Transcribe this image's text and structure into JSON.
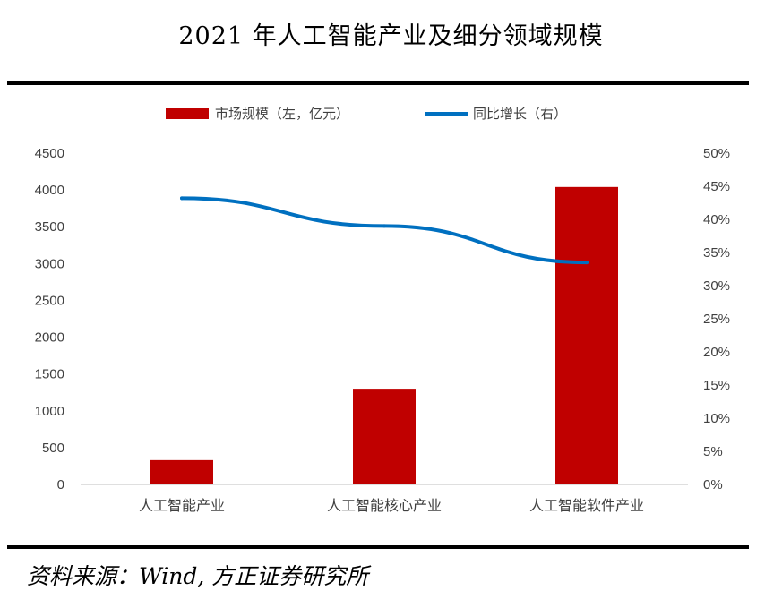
{
  "title": "2021 年人工智能产业及细分领域规模",
  "source": "资料来源：Wind, 方正证券研究所",
  "colors": {
    "bar": "#c00000",
    "line": "#0070c0",
    "axis": "#bfbfbf",
    "text": "#404040"
  },
  "chart_data": {
    "type": "bar+line",
    "categories": [
      "人工智能产业",
      "人工智能核心产业",
      "人工智能软件产业"
    ],
    "series": [
      {
        "name": "市场规模（左，亿元）",
        "type": "bar",
        "axis": "left",
        "values": [
          330,
          1300,
          4040
        ]
      },
      {
        "name": "同比增长（右）",
        "type": "line",
        "axis": "right",
        "values": [
          43.2,
          39.0,
          33.5
        ]
      }
    ],
    "left_axis": {
      "min": 0,
      "max": 4500,
      "step": 500,
      "ticks": [
        "0",
        "500",
        "1000",
        "1500",
        "2000",
        "2500",
        "3000",
        "3500",
        "4000",
        "4500"
      ]
    },
    "right_axis": {
      "min": 0,
      "max": 50,
      "step": 5,
      "ticks": [
        "0%",
        "5%",
        "10%",
        "15%",
        "20%",
        "25%",
        "30%",
        "35%",
        "40%",
        "45%",
        "50%"
      ]
    },
    "legend_position": "top-center",
    "grid": false
  }
}
